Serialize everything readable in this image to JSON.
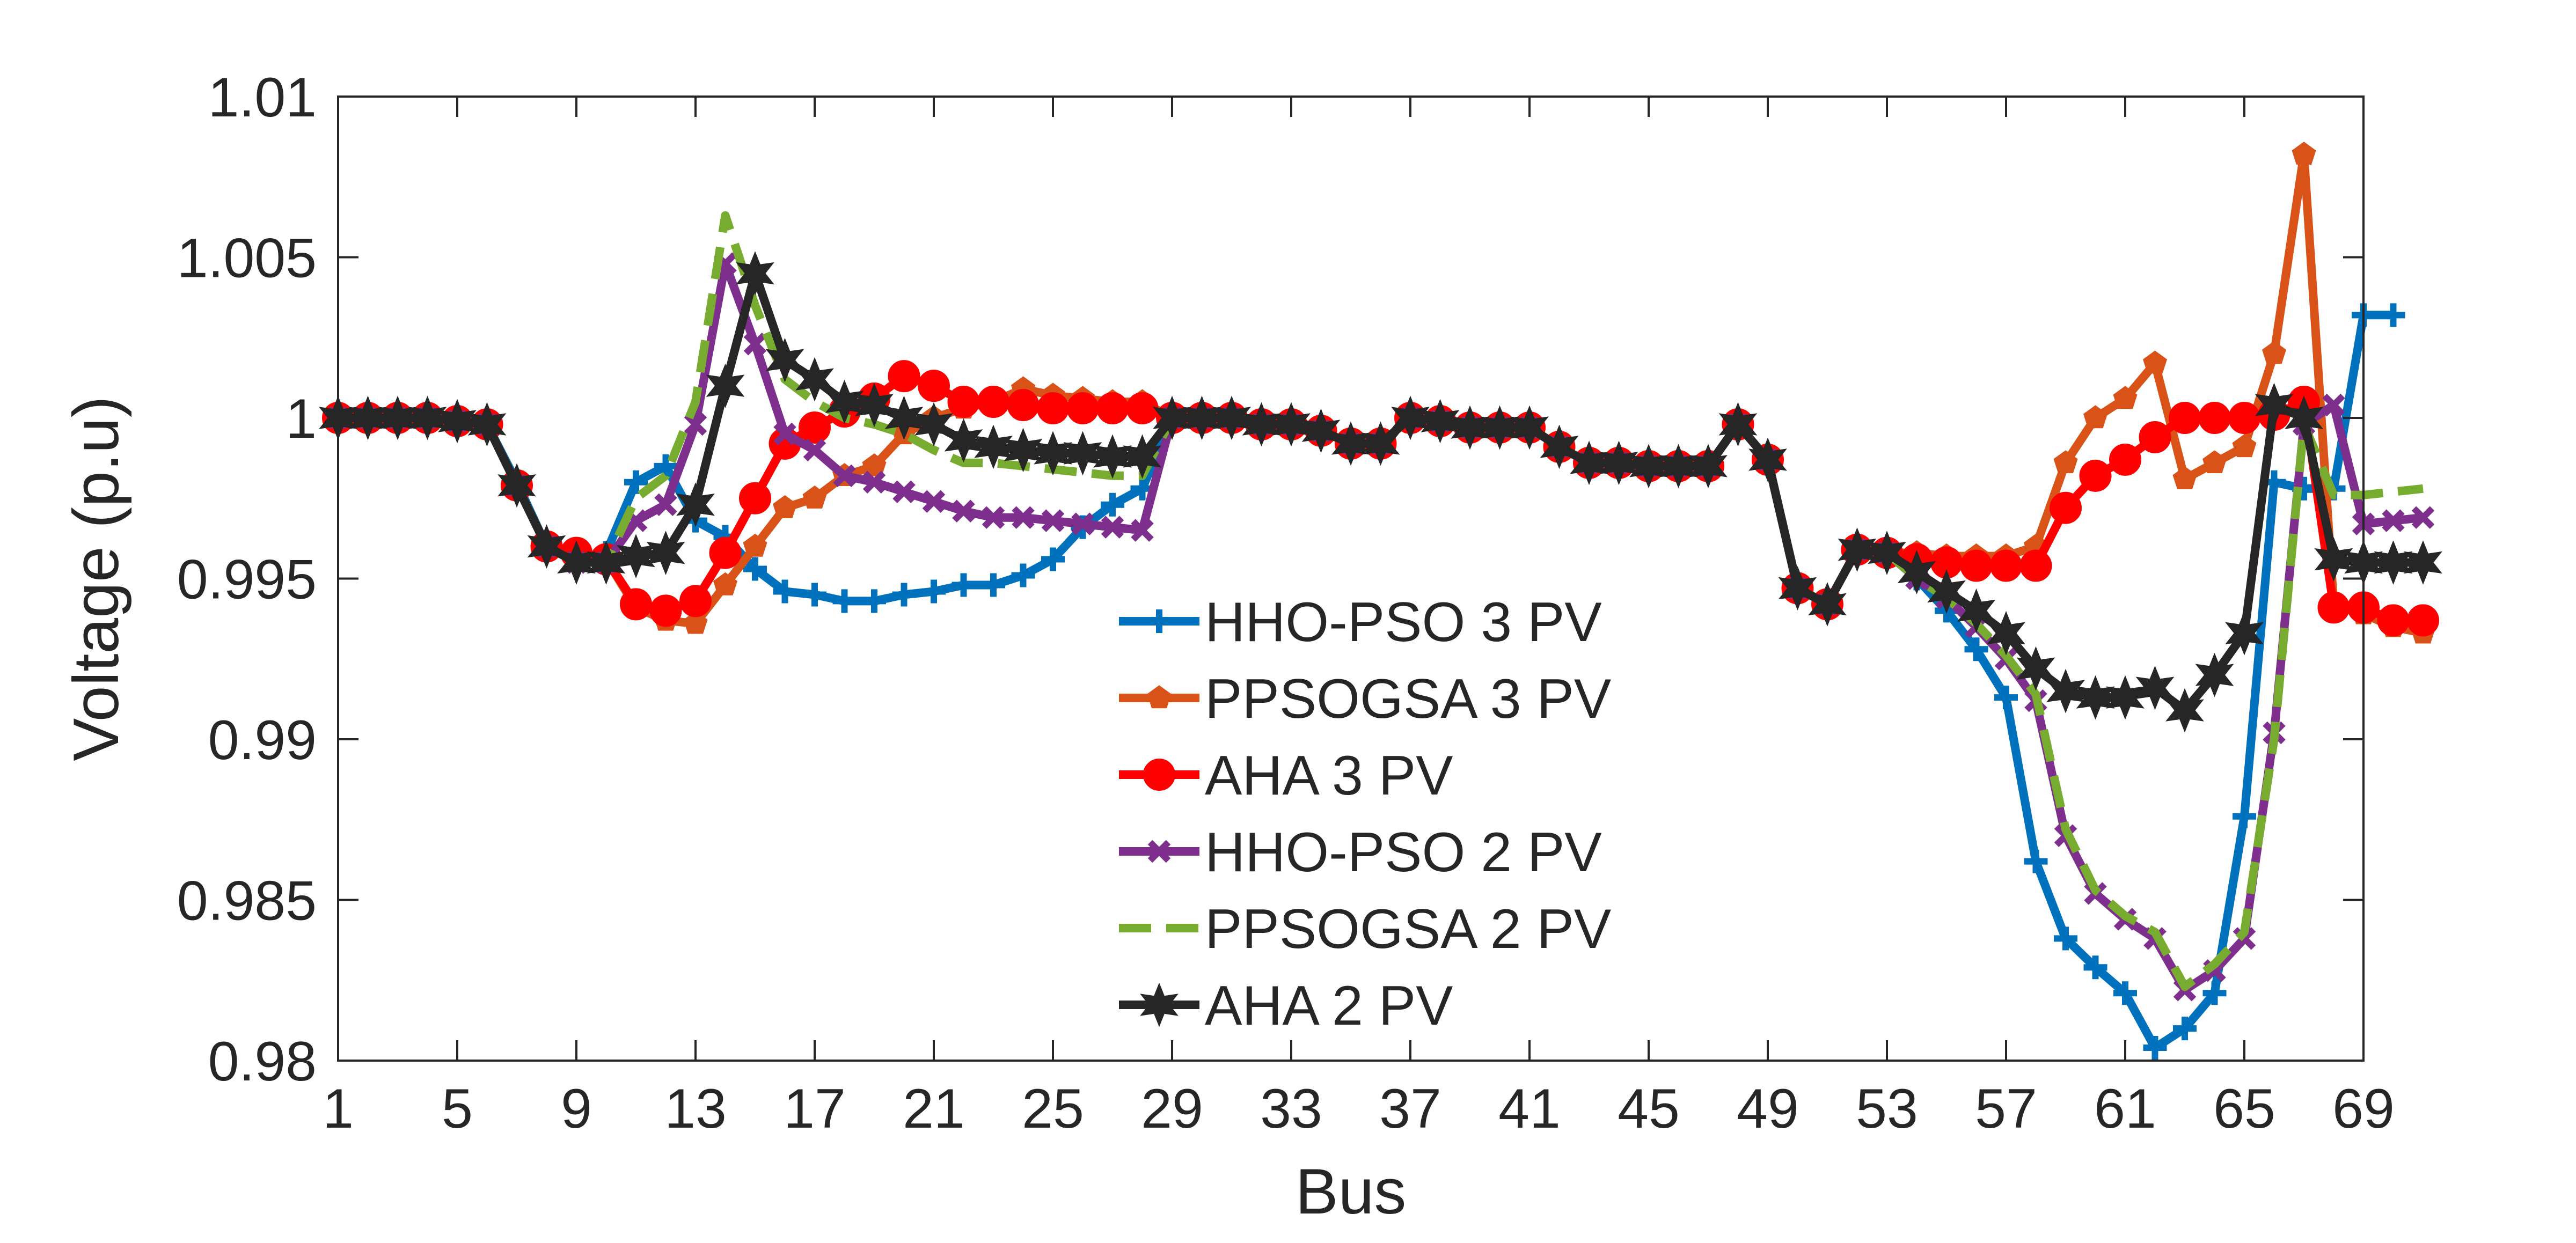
{
  "chart_data": {
    "type": "line",
    "title": "",
    "xlabel": "Bus",
    "ylabel": "Voltage (p.u)",
    "xlim": [
      1,
      69
    ],
    "ylim": [
      0.98,
      1.01
    ],
    "x_ticks": [
      "1",
      "5",
      "9",
      "13",
      "17",
      "21",
      "25",
      "29",
      "33",
      "37",
      "41",
      "45",
      "49",
      "53",
      "57",
      "61",
      "65",
      "69"
    ],
    "y_ticks": [
      "0.98",
      "0.985",
      "0.99",
      "0.995",
      "1",
      "1.005",
      "1.01"
    ],
    "legend_position": "center",
    "grid": false,
    "series": [
      {
        "name": "HHO-PSO 3 PV",
        "color": "#0072BD",
        "dash": "solid",
        "marker": "plus",
        "values": [
          1.0,
          1.0,
          1.0,
          1.0,
          0.9999,
          0.9998,
          0.998,
          0.996,
          0.9956,
          0.9958,
          0.998,
          0.9985,
          0.9968,
          0.9963,
          0.9953,
          0.9946,
          0.9945,
          0.9943,
          0.9943,
          0.9945,
          0.9946,
          0.9948,
          0.9948,
          0.9951,
          0.9956,
          0.9966,
          0.9973,
          0.9978,
          1.0,
          1.0,
          1.0,
          0.9998,
          0.9998,
          0.9996,
          0.9992,
          0.9992,
          1.0,
          0.9999,
          0.9997,
          0.9997,
          0.9997,
          0.9991,
          0.9986,
          0.9986,
          0.9985,
          0.9985,
          0.9985,
          0.9998,
          0.9987,
          0.9947,
          0.9942,
          0.9959,
          0.9958,
          0.995,
          0.994,
          0.9928,
          0.9913,
          0.9862,
          0.9838,
          0.9829,
          0.9821,
          0.9804,
          0.981,
          0.9821,
          0.9876,
          0.998,
          0.9978,
          0.9978,
          1.0032,
          1.0032
        ]
      },
      {
        "name": "PPSOGSA 3 PV",
        "color": "#D95319",
        "dash": "solid",
        "marker": "pentagon",
        "values": [
          1.0,
          1.0,
          1.0,
          1.0,
          0.9999,
          0.9998,
          0.9979,
          0.996,
          0.9958,
          0.9956,
          0.9941,
          0.9937,
          0.9936,
          0.9948,
          0.996,
          0.9972,
          0.9975,
          0.9982,
          0.9985,
          0.9995,
          1.0,
          1.0003,
          1.0005,
          1.0009,
          1.0007,
          1.0006,
          1.0005,
          1.0005,
          1.0,
          1.0,
          1.0,
          0.9998,
          0.9998,
          0.9996,
          0.9992,
          0.9992,
          1.0,
          0.9999,
          0.9997,
          0.9997,
          0.9997,
          0.9991,
          0.9986,
          0.9986,
          0.9985,
          0.9985,
          0.9985,
          0.9998,
          0.9987,
          0.9947,
          0.9942,
          0.9959,
          0.9958,
          0.9958,
          0.9957,
          0.9957,
          0.9957,
          0.996,
          0.9986,
          1.0,
          1.0006,
          1.0017,
          0.9981,
          0.9986,
          0.9991,
          1.002,
          1.0082,
          0.9942,
          0.9939,
          0.9935,
          0.9933
        ]
      },
      {
        "name": "AHA 3 PV",
        "color": "#FF0000",
        "dash": "solid",
        "marker": "circle",
        "values": [
          1.0,
          1.0,
          1.0,
          1.0,
          0.9999,
          0.9998,
          0.9979,
          0.996,
          0.9958,
          0.9956,
          0.9942,
          0.994,
          0.9943,
          0.9958,
          0.9975,
          0.9992,
          0.9997,
          1.0002,
          1.0006,
          1.0013,
          1.001,
          1.0005,
          1.0005,
          1.0004,
          1.0003,
          1.0003,
          1.0003,
          1.0003,
          1.0,
          1.0,
          1.0,
          0.9998,
          0.9998,
          0.9996,
          0.9992,
          0.9992,
          1.0,
          0.9999,
          0.9997,
          0.9997,
          0.9997,
          0.9991,
          0.9986,
          0.9986,
          0.9985,
          0.9985,
          0.9985,
          0.9998,
          0.9987,
          0.9947,
          0.9942,
          0.9959,
          0.9958,
          0.9956,
          0.9955,
          0.9954,
          0.9954,
          0.9954,
          0.9972,
          0.9982,
          0.9987,
          0.9994,
          1.0,
          1.0,
          1.0,
          1.0001,
          1.0005,
          0.9941,
          0.9941,
          0.9937,
          0.9937
        ]
      },
      {
        "name": "HHO-PSO 2 PV",
        "color": "#7E2F8E",
        "dash": "solid",
        "marker": "x",
        "values": [
          1.0,
          1.0,
          1.0,
          1.0,
          0.9999,
          0.9998,
          0.9979,
          0.996,
          0.9955,
          0.9955,
          0.9968,
          0.9973,
          0.9998,
          1.0048,
          1.0023,
          0.9995,
          0.999,
          0.9982,
          0.998,
          0.9977,
          0.9974,
          0.9971,
          0.9969,
          0.9969,
          0.9968,
          0.9967,
          0.9966,
          0.9965,
          1.0,
          1.0,
          1.0,
          0.9998,
          0.9998,
          0.9996,
          0.9992,
          0.9992,
          1.0,
          0.9999,
          0.9997,
          0.9997,
          0.9997,
          0.9991,
          0.9986,
          0.9986,
          0.9985,
          0.9985,
          0.9985,
          0.9998,
          0.9987,
          0.9947,
          0.9942,
          0.9959,
          0.9958,
          0.995,
          0.9944,
          0.9935,
          0.9925,
          0.9912,
          0.987,
          0.9852,
          0.9844,
          0.9838,
          0.9822,
          0.9828,
          0.9838,
          0.9902,
          0.9998,
          1.0004,
          0.9967,
          0.9968,
          0.9969
        ]
      },
      {
        "name": "PPSOGSA 2 PV",
        "color": "#77AC30",
        "dash": "dashed",
        "marker": "none",
        "values": [
          1.0,
          1.0,
          1.0,
          1.0,
          0.9999,
          0.9998,
          0.9979,
          0.996,
          0.9955,
          0.9955,
          0.9975,
          0.9982,
          1.0005,
          1.0063,
          1.0035,
          1.0012,
          1.0005,
          1.0,
          0.9998,
          0.9995,
          0.999,
          0.9986,
          0.9986,
          0.9985,
          0.9984,
          0.9983,
          0.9982,
          0.9982,
          1.0,
          1.0,
          1.0,
          0.9998,
          0.9998,
          0.9996,
          0.9992,
          0.9992,
          1.0,
          0.9999,
          0.9997,
          0.9997,
          0.9997,
          0.9991,
          0.9986,
          0.9986,
          0.9985,
          0.9985,
          0.9985,
          0.9998,
          0.9987,
          0.9947,
          0.9942,
          0.9959,
          0.9958,
          0.995,
          0.9944,
          0.9936,
          0.9926,
          0.9914,
          0.9872,
          0.9853,
          0.9845,
          0.984,
          0.9823,
          0.983,
          0.984,
          0.99,
          0.9998,
          0.9976,
          0.9976,
          0.9977,
          0.9978
        ]
      },
      {
        "name": "AHA 2 PV",
        "color": "#262626",
        "dash": "solid",
        "marker": "star",
        "values": [
          1.0,
          1.0,
          1.0,
          1.0,
          0.9999,
          0.9998,
          0.9979,
          0.996,
          0.9955,
          0.9955,
          0.9957,
          0.9958,
          0.9973,
          1.001,
          1.0045,
          1.0018,
          1.0012,
          1.0005,
          1.0004,
          1.0,
          0.9998,
          0.9993,
          0.9991,
          0.999,
          0.9989,
          0.9989,
          0.9988,
          0.9988,
          1.0,
          1.0,
          1.0,
          0.9998,
          0.9998,
          0.9996,
          0.9992,
          0.9992,
          1.0,
          0.9999,
          0.9997,
          0.9997,
          0.9997,
          0.9991,
          0.9986,
          0.9986,
          0.9985,
          0.9985,
          0.9985,
          0.9998,
          0.9987,
          0.9947,
          0.9942,
          0.9959,
          0.9958,
          0.9952,
          0.9946,
          0.994,
          0.9933,
          0.9922,
          0.9915,
          0.9913,
          0.9913,
          0.9916,
          0.9909,
          0.992,
          0.9933,
          1.0004,
          1.0,
          0.9956,
          0.9955,
          0.9955,
          0.9955
        ]
      }
    ]
  }
}
